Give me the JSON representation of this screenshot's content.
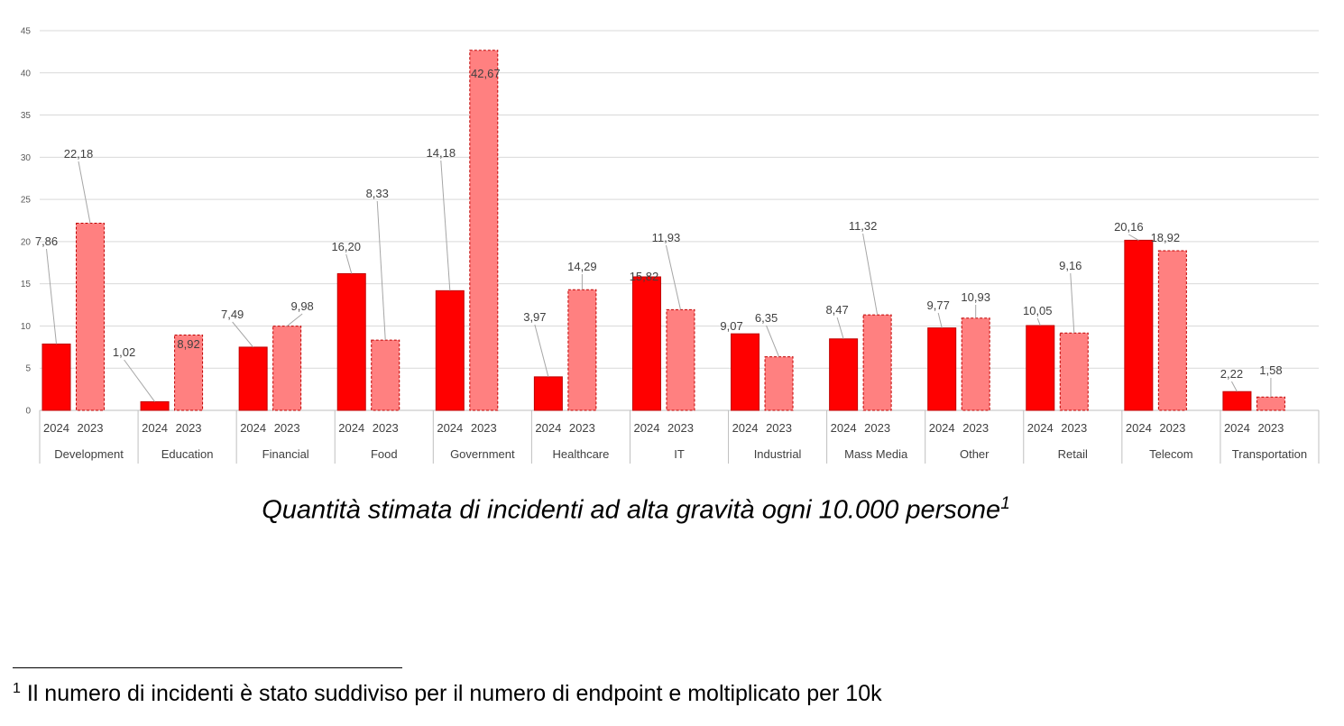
{
  "chart_data": {
    "type": "bar",
    "title": "Quantità stimata di incidenti ad alta gravità ogni 10.000 persone",
    "title_footnote_mark": "1",
    "xlabel": "",
    "ylabel": "",
    "ylim": [
      0,
      45
    ],
    "yticks": [
      "0",
      "5",
      "10",
      "15",
      "20",
      "25",
      "30",
      "35",
      "40",
      "45"
    ],
    "grid": true,
    "categories": [
      "Development",
      "Education",
      "Financial",
      "Food",
      "Government",
      "Healthcare",
      "IT",
      "Industrial",
      "Mass Media",
      "Other",
      "Retail",
      "Telecom",
      "Transportation"
    ],
    "series": [
      {
        "name": "2024",
        "color": "#ff0000",
        "values": [
          7.86,
          1.02,
          7.49,
          16.2,
          14.18,
          3.97,
          15.82,
          9.07,
          8.47,
          9.77,
          10.05,
          20.16,
          2.22
        ],
        "labels": [
          "7,86",
          "1,02",
          "7,49",
          "16,20",
          "14,18",
          "3,97",
          "15,82",
          "9,07",
          "8,47",
          "9,77",
          "10,05",
          "20,16",
          "2,22"
        ]
      },
      {
        "name": "2023",
        "color": "#ff8080",
        "values": [
          22.18,
          8.92,
          9.98,
          8.33,
          42.67,
          14.29,
          11.93,
          6.35,
          11.32,
          10.93,
          9.16,
          18.92,
          1.58
        ],
        "labels": [
          "22,18",
          "8,92",
          "9,98",
          "8,33",
          "42,67",
          "14,29",
          "11,93",
          "6,35",
          "11,32",
          "10,93",
          "9,16",
          "18,92",
          "1,58"
        ]
      }
    ]
  },
  "footnote": {
    "mark": "1",
    "text": "Il numero di incidenti è stato suddiviso per il numero di endpoint e moltiplicato per 10k"
  }
}
